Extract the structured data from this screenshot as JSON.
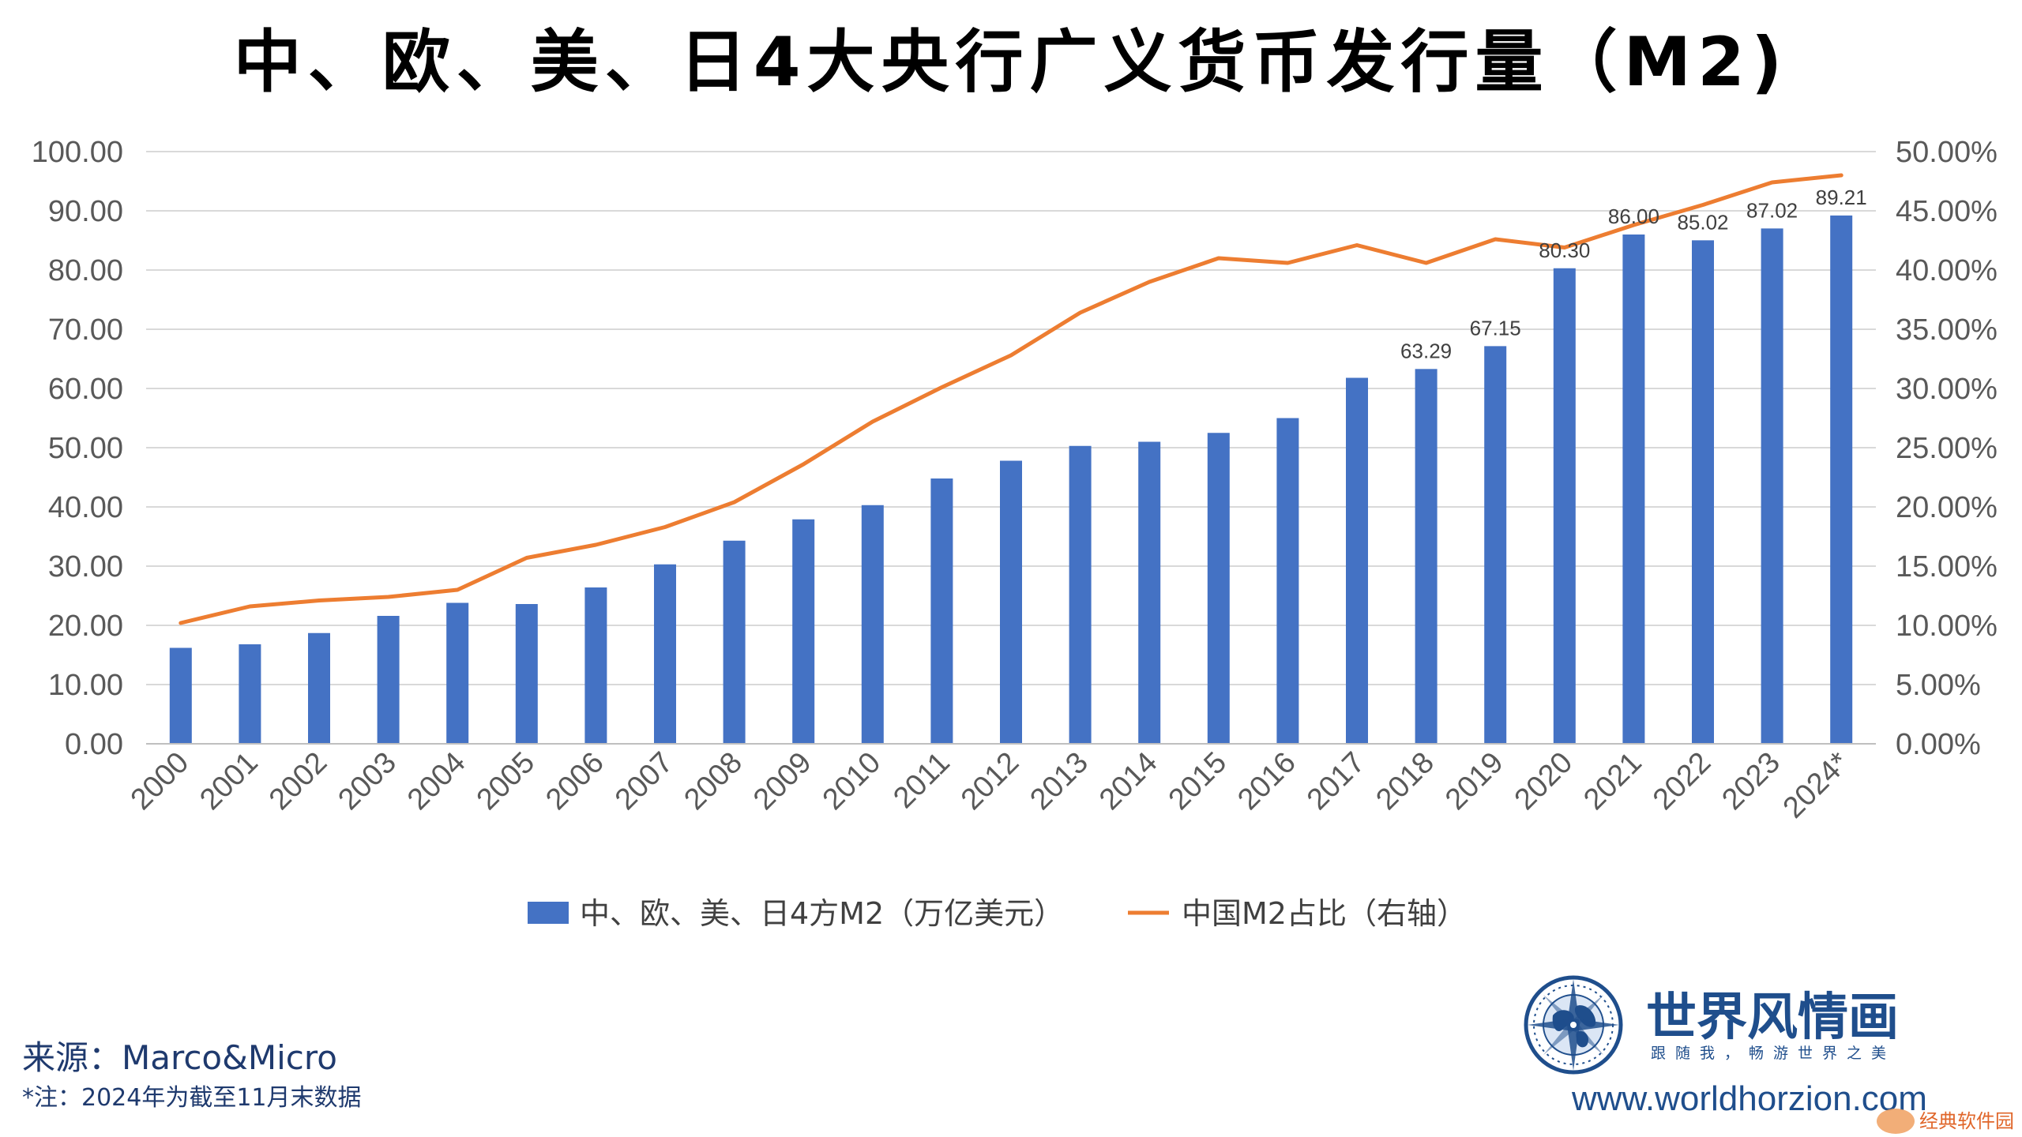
{
  "title": "中、欧、美、日4大央行广义货币发行量（M2)",
  "legend": {
    "bar_label": "中、欧、美、日4方M2（万亿美元）",
    "line_label": "中国M2占比（右轴）"
  },
  "source": {
    "label": "来源：Marco&Micro",
    "note": "*注：2024年为截至11月末数据"
  },
  "brand": {
    "name": "世界风情画",
    "slogan": "跟随我，畅游世界之美",
    "url": "www.worldhorzion.com",
    "watermark": "经典软件园"
  },
  "colors": {
    "bar": "#4472c4",
    "line": "#ed7d31",
    "grid": "#d9d9d9",
    "axis_text": "#595959",
    "brand": "#1f4e8c"
  },
  "chart_data": {
    "type": "bar",
    "categories": [
      "2000",
      "2001",
      "2002",
      "2003",
      "2004",
      "2005",
      "2006",
      "2007",
      "2008",
      "2009",
      "2010",
      "2011",
      "2012",
      "2013",
      "2014",
      "2015",
      "2016",
      "2017",
      "2018",
      "2019",
      "2020",
      "2021",
      "2022",
      "2023",
      "2024*"
    ],
    "series": [
      {
        "name": "中、欧、美、日4方M2（万亿美元）",
        "type": "bar",
        "axis": "left",
        "values": [
          16.2,
          16.8,
          18.7,
          21.6,
          23.8,
          23.6,
          26.4,
          30.3,
          34.3,
          37.9,
          40.3,
          44.8,
          47.8,
          50.3,
          51.0,
          52.5,
          55.0,
          61.8,
          63.29,
          67.15,
          80.3,
          86.0,
          85.02,
          87.02,
          89.21
        ]
      },
      {
        "name": "中国M2占比（右轴）",
        "type": "line",
        "axis": "right",
        "values": [
          0.102,
          0.116,
          0.121,
          0.124,
          0.13,
          0.157,
          0.168,
          0.183,
          0.204,
          0.236,
          0.272,
          0.301,
          0.328,
          0.364,
          0.39,
          0.41,
          0.406,
          0.421,
          0.406,
          0.426,
          0.419,
          0.438,
          0.455,
          0.474,
          0.48
        ]
      }
    ],
    "data_labels": [
      {
        "index": 18,
        "text": "63.29"
      },
      {
        "index": 19,
        "text": "67.15"
      },
      {
        "index": 20,
        "text": "80.30"
      },
      {
        "index": 21,
        "text": "86.00"
      },
      {
        "index": 22,
        "text": "85.02"
      },
      {
        "index": 23,
        "text": "87.02"
      },
      {
        "index": 24,
        "text": "89.21"
      }
    ],
    "ylim_left": [
      0,
      100
    ],
    "yticks_left": [
      "0.00",
      "10.00",
      "20.00",
      "30.00",
      "40.00",
      "50.00",
      "60.00",
      "70.00",
      "80.00",
      "90.00",
      "100.00"
    ],
    "ylim_right": [
      0,
      0.5
    ],
    "yticks_right": [
      "0.00%",
      "5.00%",
      "10.00%",
      "15.00%",
      "20.00%",
      "25.00%",
      "30.00%",
      "35.00%",
      "40.00%",
      "45.00%",
      "50.00%"
    ],
    "grid": true,
    "legend_position": "bottom"
  }
}
